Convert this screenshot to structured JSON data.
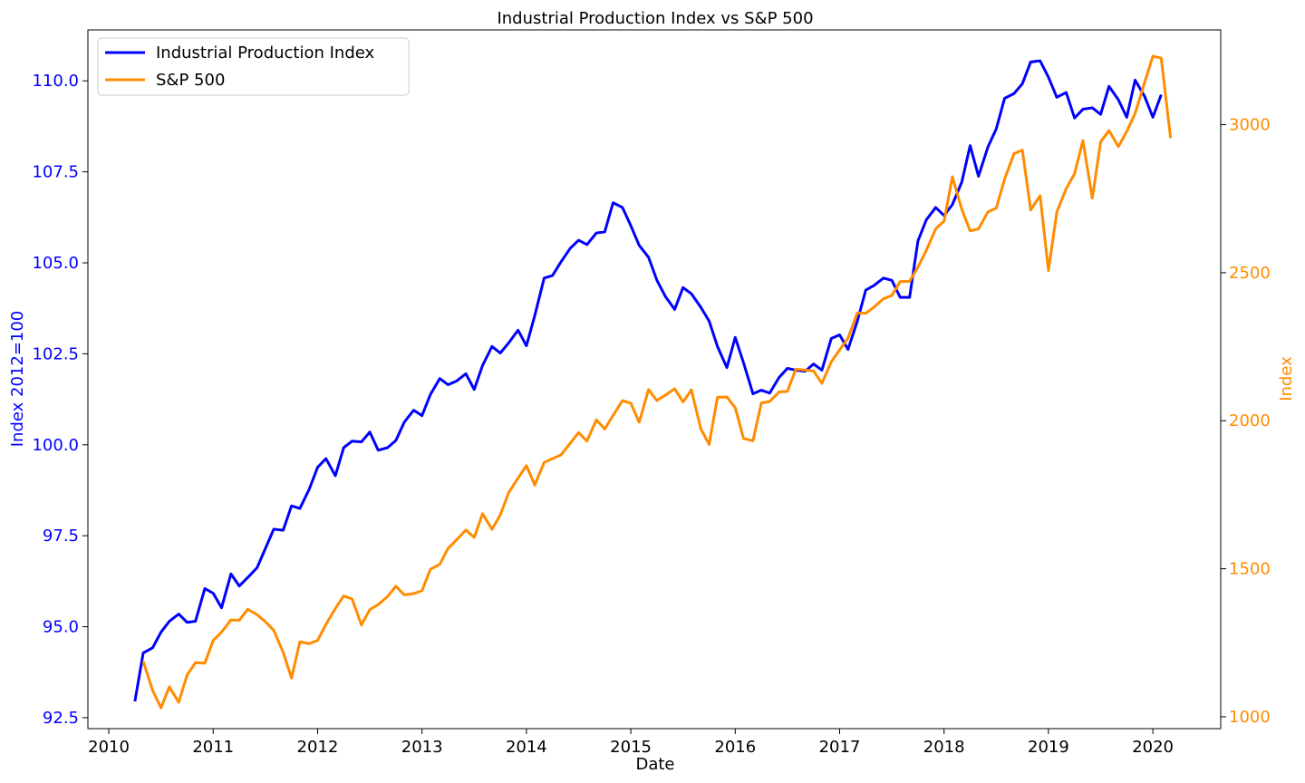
{
  "chart_data": {
    "type": "line",
    "title": "Industrial Production Index vs S&P 500",
    "xlabel": "Date",
    "ylabel_left": "Index 2012=100",
    "ylabel_right": "Index",
    "xlim": [
      2009.8,
      2020.65
    ],
    "ylim_left": [
      92.2,
      111.4
    ],
    "ylim_right": [
      960,
      3320
    ],
    "x_ticks": [
      2010,
      2011,
      2012,
      2013,
      2014,
      2015,
      2016,
      2017,
      2018,
      2019,
      2020
    ],
    "x_tick_labels": [
      "2010",
      "2011",
      "2012",
      "2013",
      "2014",
      "2015",
      "2016",
      "2017",
      "2018",
      "2019",
      "2020"
    ],
    "y_left_ticks": [
      92.5,
      95.0,
      97.5,
      100.0,
      102.5,
      105.0,
      107.5,
      110.0
    ],
    "y_left_tick_labels": [
      "92.5",
      "95.0",
      "97.5",
      "100.0",
      "102.5",
      "105.0",
      "107.5",
      "110.0"
    ],
    "y_right_ticks": [
      1000,
      1500,
      2000,
      2500,
      3000
    ],
    "y_right_tick_labels": [
      "1000",
      "1500",
      "2000",
      "2500",
      "3000"
    ],
    "grid": false,
    "legend_position": "top-left",
    "series": [
      {
        "name": "Industrial Production Index",
        "axis": "left",
        "color": "#0000ff",
        "points": [
          [
            2010.25,
            92.95
          ],
          [
            2010.33,
            94.28
          ],
          [
            2010.42,
            94.42
          ],
          [
            2010.5,
            94.85
          ],
          [
            2010.58,
            95.15
          ],
          [
            2010.67,
            95.35
          ],
          [
            2010.75,
            95.12
          ],
          [
            2010.83,
            95.15
          ],
          [
            2010.92,
            96.05
          ],
          [
            2011.0,
            95.92
          ],
          [
            2011.08,
            95.52
          ],
          [
            2011.17,
            96.45
          ],
          [
            2011.25,
            96.12
          ],
          [
            2011.33,
            96.35
          ],
          [
            2011.42,
            96.62
          ],
          [
            2011.5,
            97.15
          ],
          [
            2011.58,
            97.68
          ],
          [
            2011.67,
            97.65
          ],
          [
            2011.75,
            98.32
          ],
          [
            2011.83,
            98.25
          ],
          [
            2011.92,
            98.78
          ],
          [
            2012.0,
            99.38
          ],
          [
            2012.08,
            99.62
          ],
          [
            2012.17,
            99.15
          ],
          [
            2012.25,
            99.92
          ],
          [
            2012.33,
            100.1
          ],
          [
            2012.42,
            100.08
          ],
          [
            2012.5,
            100.35
          ],
          [
            2012.58,
            99.85
          ],
          [
            2012.67,
            99.92
          ],
          [
            2012.75,
            100.12
          ],
          [
            2012.83,
            100.62
          ],
          [
            2012.92,
            100.95
          ],
          [
            2013.0,
            100.8
          ],
          [
            2013.08,
            101.38
          ],
          [
            2013.17,
            101.82
          ],
          [
            2013.25,
            101.65
          ],
          [
            2013.33,
            101.75
          ],
          [
            2013.42,
            101.95
          ],
          [
            2013.5,
            101.52
          ],
          [
            2013.58,
            102.18
          ],
          [
            2013.67,
            102.7
          ],
          [
            2013.75,
            102.52
          ],
          [
            2013.83,
            102.8
          ],
          [
            2013.92,
            103.15
          ],
          [
            2014.0,
            102.72
          ],
          [
            2014.08,
            103.55
          ],
          [
            2014.17,
            104.58
          ],
          [
            2014.25,
            104.65
          ],
          [
            2014.33,
            105.02
          ],
          [
            2014.42,
            105.4
          ],
          [
            2014.5,
            105.62
          ],
          [
            2014.58,
            105.5
          ],
          [
            2014.67,
            105.82
          ],
          [
            2014.75,
            105.85
          ],
          [
            2014.83,
            106.65
          ],
          [
            2014.92,
            106.52
          ],
          [
            2015.0,
            106.02
          ],
          [
            2015.08,
            105.48
          ],
          [
            2015.17,
            105.15
          ],
          [
            2015.25,
            104.52
          ],
          [
            2015.33,
            104.08
          ],
          [
            2015.42,
            103.72
          ],
          [
            2015.5,
            104.32
          ],
          [
            2015.58,
            104.15
          ],
          [
            2015.67,
            103.78
          ],
          [
            2015.75,
            103.4
          ],
          [
            2015.83,
            102.7
          ],
          [
            2015.92,
            102.12
          ],
          [
            2016.0,
            102.95
          ],
          [
            2016.08,
            102.25
          ],
          [
            2016.17,
            101.4
          ],
          [
            2016.25,
            101.5
          ],
          [
            2016.33,
            101.42
          ],
          [
            2016.42,
            101.85
          ],
          [
            2016.5,
            102.1
          ],
          [
            2016.58,
            102.05
          ],
          [
            2016.67,
            102.02
          ],
          [
            2016.75,
            102.22
          ],
          [
            2016.83,
            102.05
          ],
          [
            2016.92,
            102.92
          ],
          [
            2017.0,
            103.02
          ],
          [
            2017.08,
            102.62
          ],
          [
            2017.17,
            103.4
          ],
          [
            2017.25,
            104.25
          ],
          [
            2017.33,
            104.38
          ],
          [
            2017.42,
            104.58
          ],
          [
            2017.5,
            104.52
          ],
          [
            2017.58,
            104.05
          ],
          [
            2017.67,
            104.05
          ],
          [
            2017.75,
            105.6
          ],
          [
            2017.83,
            106.18
          ],
          [
            2017.92,
            106.52
          ],
          [
            2018.0,
            106.3
          ],
          [
            2018.08,
            106.6
          ],
          [
            2018.17,
            107.22
          ],
          [
            2018.25,
            108.22
          ],
          [
            2018.33,
            107.38
          ],
          [
            2018.42,
            108.18
          ],
          [
            2018.5,
            108.68
          ],
          [
            2018.58,
            109.52
          ],
          [
            2018.67,
            109.65
          ],
          [
            2018.75,
            109.92
          ],
          [
            2018.83,
            110.52
          ],
          [
            2018.92,
            110.55
          ],
          [
            2019.0,
            110.1
          ],
          [
            2019.08,
            109.55
          ],
          [
            2019.17,
            109.68
          ],
          [
            2019.25,
            108.98
          ],
          [
            2019.33,
            109.22
          ],
          [
            2019.42,
            109.26
          ],
          [
            2019.5,
            109.08
          ],
          [
            2019.58,
            109.85
          ],
          [
            2019.67,
            109.48
          ],
          [
            2019.75,
            109.0
          ],
          [
            2019.83,
            110.02
          ],
          [
            2019.92,
            109.58
          ],
          [
            2020.0,
            109.0
          ],
          [
            2020.08,
            109.62
          ]
        ]
      },
      {
        "name": "S&P 500",
        "axis": "right",
        "color": "#ff8c00",
        "points": [
          [
            2010.33,
            1187
          ],
          [
            2010.42,
            1089
          ],
          [
            2010.5,
            1030
          ],
          [
            2010.58,
            1101
          ],
          [
            2010.67,
            1049
          ],
          [
            2010.75,
            1141
          ],
          [
            2010.83,
            1183
          ],
          [
            2010.92,
            1181
          ],
          [
            2011.0,
            1258
          ],
          [
            2011.08,
            1286
          ],
          [
            2011.17,
            1327
          ],
          [
            2011.25,
            1326
          ],
          [
            2011.33,
            1363
          ],
          [
            2011.42,
            1345
          ],
          [
            2011.5,
            1321
          ],
          [
            2011.58,
            1292
          ],
          [
            2011.67,
            1218
          ],
          [
            2011.75,
            1131
          ],
          [
            2011.83,
            1253
          ],
          [
            2011.92,
            1247
          ],
          [
            2012.0,
            1258
          ],
          [
            2012.08,
            1312
          ],
          [
            2012.17,
            1366
          ],
          [
            2012.25,
            1408
          ],
          [
            2012.33,
            1398
          ],
          [
            2012.42,
            1310
          ],
          [
            2012.5,
            1362
          ],
          [
            2012.58,
            1379
          ],
          [
            2012.67,
            1406
          ],
          [
            2012.75,
            1441
          ],
          [
            2012.83,
            1412
          ],
          [
            2012.92,
            1416
          ],
          [
            2013.0,
            1426
          ],
          [
            2013.08,
            1498
          ],
          [
            2013.17,
            1515
          ],
          [
            2013.25,
            1569
          ],
          [
            2013.33,
            1597
          ],
          [
            2013.42,
            1631
          ],
          [
            2013.5,
            1606
          ],
          [
            2013.58,
            1686
          ],
          [
            2013.67,
            1633
          ],
          [
            2013.75,
            1682
          ],
          [
            2013.83,
            1757
          ],
          [
            2013.92,
            1806
          ],
          [
            2014.0,
            1848
          ],
          [
            2014.08,
            1783
          ],
          [
            2014.17,
            1859
          ],
          [
            2014.25,
            1872
          ],
          [
            2014.33,
            1884
          ],
          [
            2014.42,
            1924
          ],
          [
            2014.5,
            1960
          ],
          [
            2014.58,
            1931
          ],
          [
            2014.67,
            2003
          ],
          [
            2014.75,
            1972
          ],
          [
            2014.83,
            2018
          ],
          [
            2014.92,
            2068
          ],
          [
            2015.0,
            2059
          ],
          [
            2015.08,
            1995
          ],
          [
            2015.17,
            2105
          ],
          [
            2015.25,
            2068
          ],
          [
            2015.33,
            2086
          ],
          [
            2015.42,
            2108
          ],
          [
            2015.5,
            2063
          ],
          [
            2015.58,
            2104
          ],
          [
            2015.67,
            1973
          ],
          [
            2015.75,
            1920
          ],
          [
            2015.83,
            2079
          ],
          [
            2015.92,
            2080
          ],
          [
            2016.0,
            2044
          ],
          [
            2016.08,
            1940
          ],
          [
            2016.17,
            1932
          ],
          [
            2016.25,
            2060
          ],
          [
            2016.33,
            2065
          ],
          [
            2016.42,
            2097
          ],
          [
            2016.5,
            2099
          ],
          [
            2016.58,
            2174
          ],
          [
            2016.67,
            2171
          ],
          [
            2016.75,
            2168
          ],
          [
            2016.83,
            2126
          ],
          [
            2016.92,
            2199
          ],
          [
            2017.0,
            2239
          ],
          [
            2017.08,
            2279
          ],
          [
            2017.17,
            2364
          ],
          [
            2017.25,
            2363
          ],
          [
            2017.33,
            2384
          ],
          [
            2017.42,
            2412
          ],
          [
            2017.5,
            2423
          ],
          [
            2017.58,
            2470
          ],
          [
            2017.67,
            2471
          ],
          [
            2017.75,
            2519
          ],
          [
            2017.83,
            2575
          ],
          [
            2017.92,
            2648
          ],
          [
            2018.0,
            2674
          ],
          [
            2018.08,
            2824
          ],
          [
            2018.17,
            2714
          ],
          [
            2018.25,
            2641
          ],
          [
            2018.33,
            2648
          ],
          [
            2018.42,
            2705
          ],
          [
            2018.5,
            2718
          ],
          [
            2018.58,
            2816
          ],
          [
            2018.67,
            2902
          ],
          [
            2018.75,
            2914
          ],
          [
            2018.83,
            2712
          ],
          [
            2018.92,
            2760
          ],
          [
            2019.0,
            2507
          ],
          [
            2019.08,
            2704
          ],
          [
            2019.17,
            2784
          ],
          [
            2019.25,
            2834
          ],
          [
            2019.33,
            2946
          ],
          [
            2019.42,
            2752
          ],
          [
            2019.5,
            2942
          ],
          [
            2019.58,
            2980
          ],
          [
            2019.67,
            2926
          ],
          [
            2019.75,
            2977
          ],
          [
            2019.83,
            3038
          ],
          [
            2019.92,
            3141
          ],
          [
            2020.0,
            3231
          ],
          [
            2020.08,
            3225
          ],
          [
            2020.17,
            2954
          ]
        ]
      }
    ]
  }
}
